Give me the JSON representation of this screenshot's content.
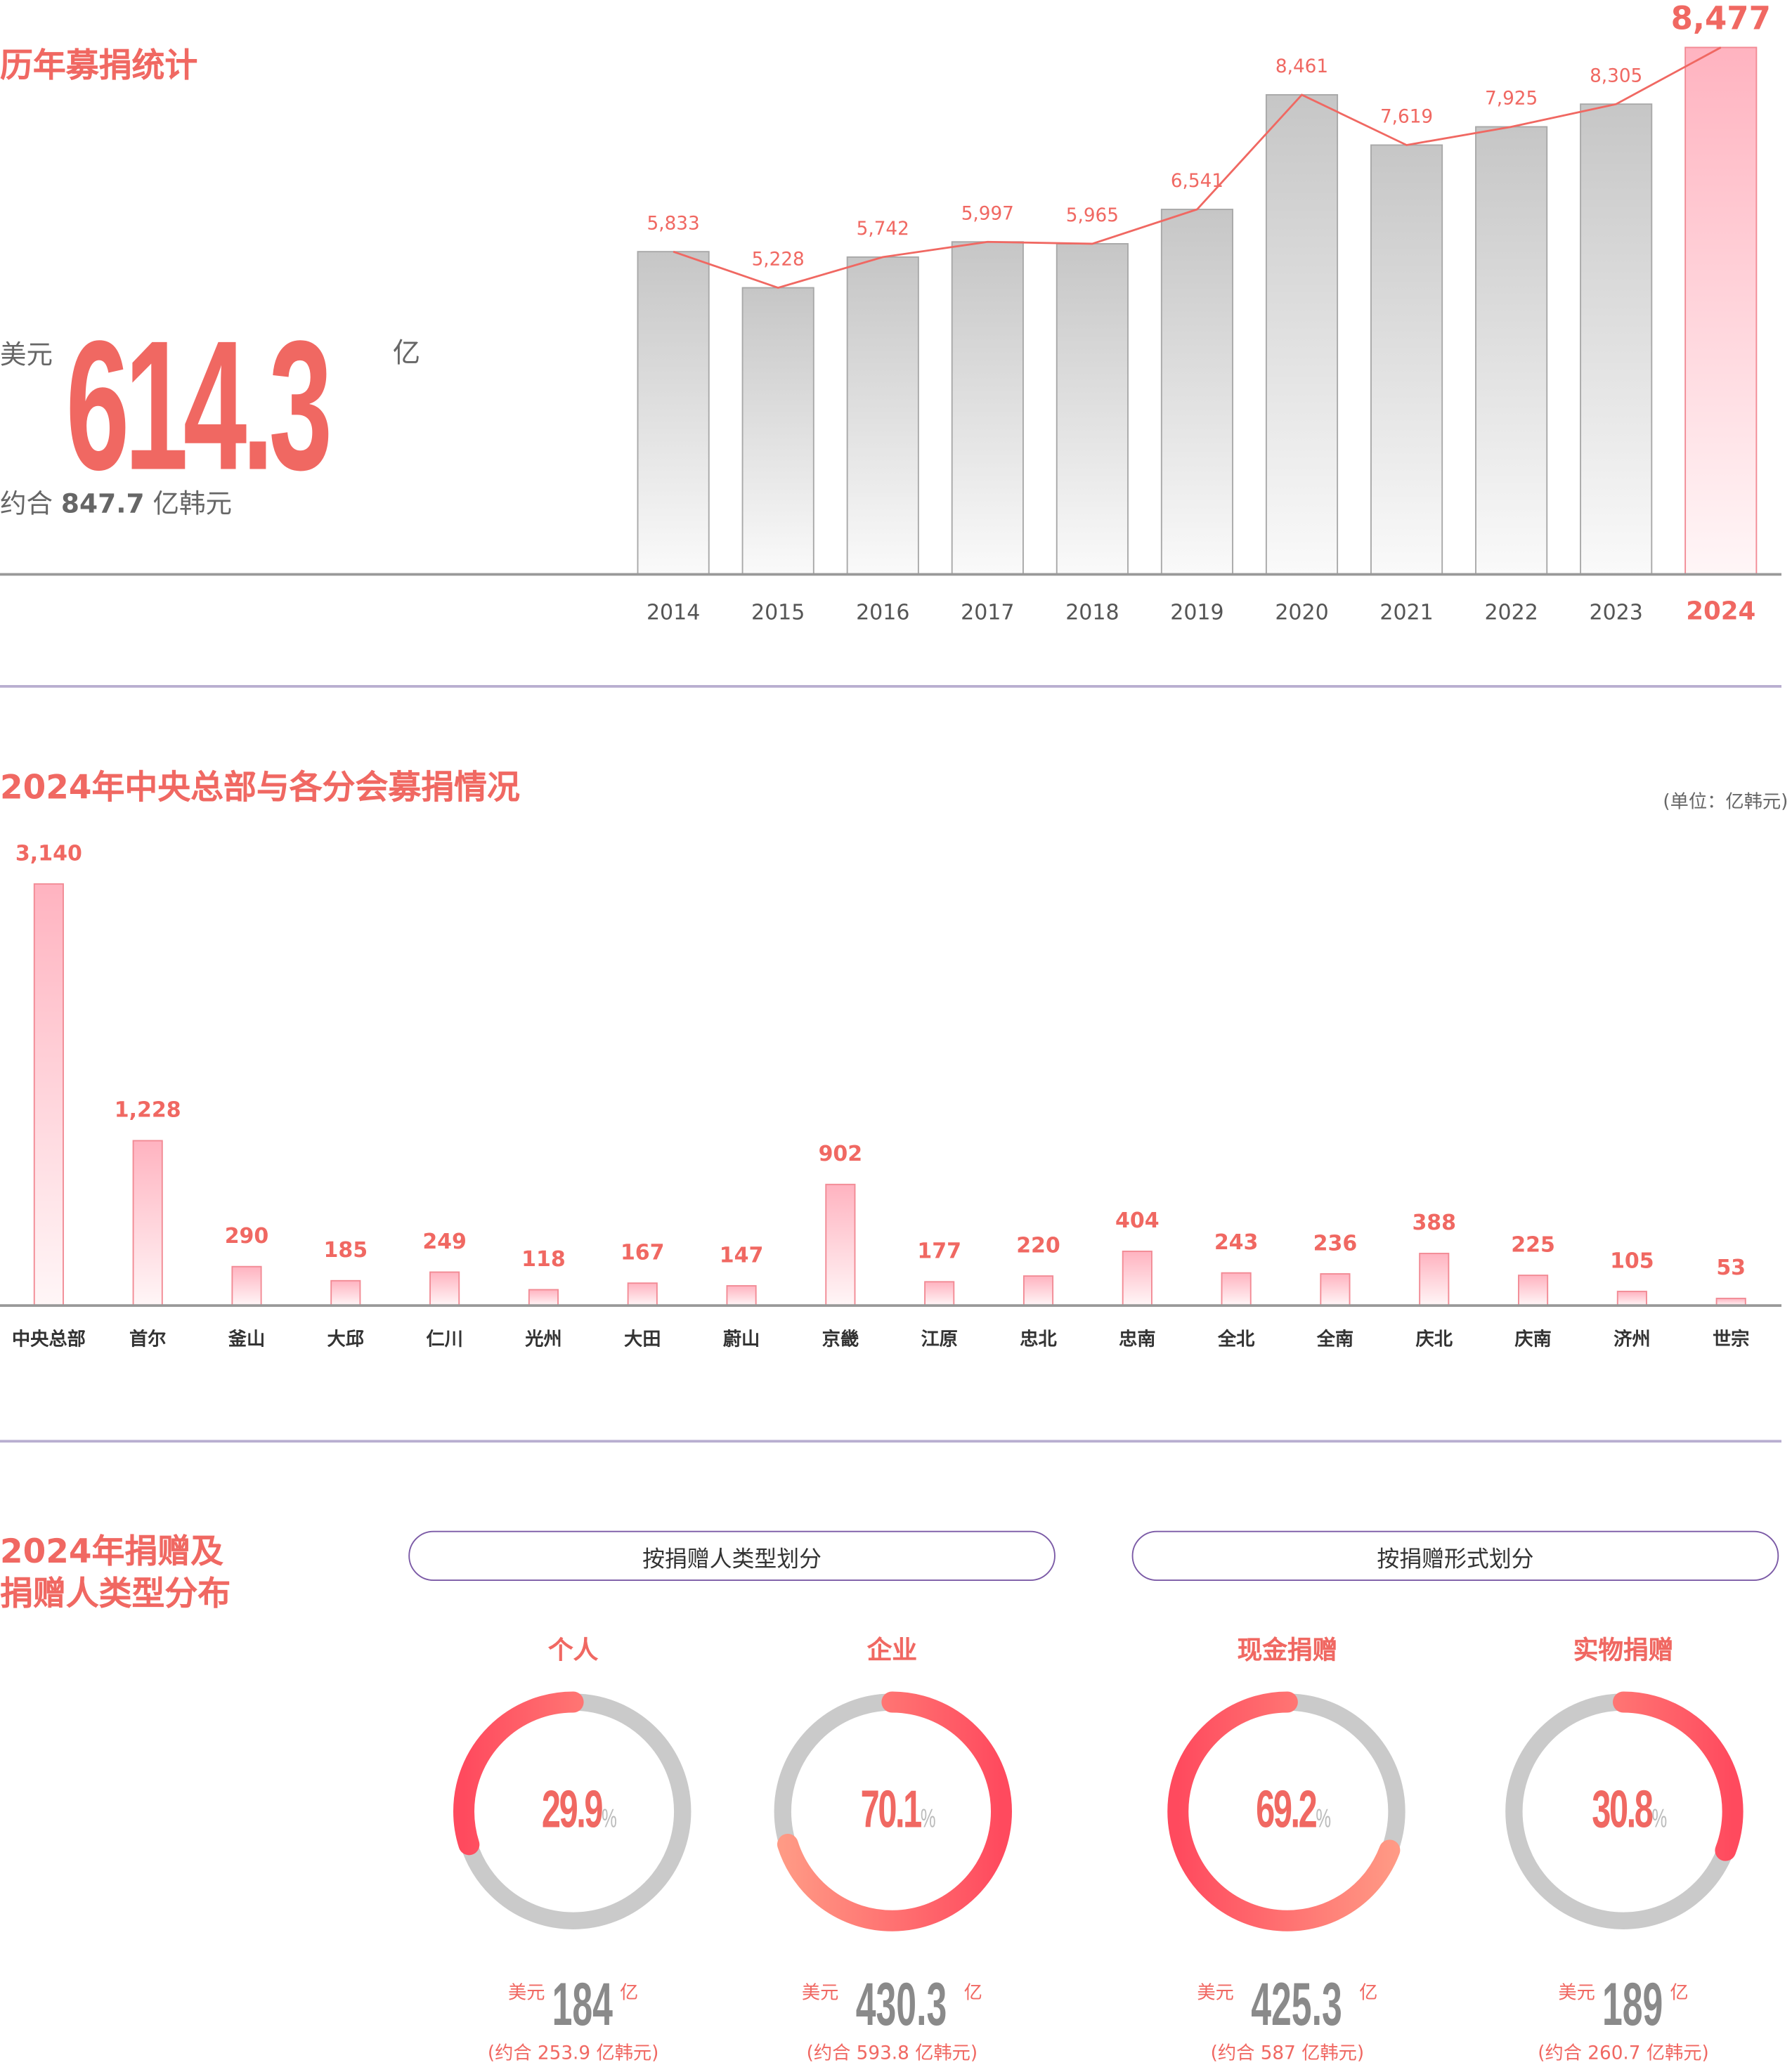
{
  "section1": {
    "title": "历年募捐统计",
    "currency": "美元",
    "total": "614.3",
    "unit": "亿",
    "krw_prefix": "约合",
    "krw_value": "847.7",
    "krw_unit": "亿韩元"
  },
  "section2": {
    "title": "2024年中央总部与各分会募捐情况",
    "unit_note": "(单位：亿韩元)"
  },
  "section3": {
    "title_line1": "2024年捐赠及",
    "title_line2": "捐赠人类型分布",
    "pill1": "按捐赠人类型划分",
    "pill2": "按捐赠形式划分",
    "donuts": [
      {
        "label": "个人",
        "percent": "29.9",
        "pct_sign": "%",
        "value": 29.9,
        "currency": "美元",
        "amount": "184",
        "unit": "亿",
        "krw": "(约合 253.9 亿韩元)"
      },
      {
        "label": "企业",
        "percent": "70.1",
        "pct_sign": "%",
        "value": 70.1,
        "currency": "美元",
        "amount": "430.3",
        "unit": "亿",
        "krw": "(约合 593.8 亿韩元)"
      },
      {
        "label": "现金捐赠",
        "percent": "69.2",
        "pct_sign": "%",
        "value": 69.2,
        "currency": "美元",
        "amount": "425.3",
        "unit": "亿",
        "krw": "(约合 587 亿韩元)"
      },
      {
        "label": "实物捐赠",
        "percent": "30.8",
        "pct_sign": "%",
        "value": 30.8,
        "currency": "美元",
        "amount": "189",
        "unit": "亿",
        "krw": "(约合 260.7 亿韩元)"
      }
    ]
  },
  "colors": {
    "accent": "#f06862",
    "gray_bar": "#c8c8c8",
    "divider": "#b8aed0"
  },
  "chart_data": [
    {
      "type": "bar",
      "title": "历年募捐统计",
      "categories": [
        "2014",
        "2015",
        "2016",
        "2017",
        "2018",
        "2019",
        "2020",
        "2021",
        "2022",
        "2023",
        "2024"
      ],
      "values": [
        5833,
        5228,
        5742,
        5997,
        5965,
        6541,
        8461,
        7619,
        7925,
        8305,
        8477
      ],
      "labels": [
        "5,833",
        "5,228",
        "5,742",
        "5,997",
        "5,965",
        "6,541",
        "8,461",
        "7,619",
        "7,925",
        "8,305",
        "8,477"
      ],
      "highlight": "2024",
      "line_overlay": true
    },
    {
      "type": "bar",
      "title": "2024年中央总部与各分会募捐情况",
      "ylabel": "亿韩元",
      "categories": [
        "中央总部",
        "首尔",
        "釜山",
        "大邱",
        "仁川",
        "光州",
        "大田",
        "蔚山",
        "京畿",
        "江原",
        "忠北",
        "忠南",
        "全北",
        "全南",
        "庆北",
        "庆南",
        "济州",
        "世宗"
      ],
      "values": [
        3140,
        1228,
        290,
        185,
        249,
        118,
        167,
        147,
        902,
        177,
        220,
        404,
        243,
        236,
        388,
        225,
        105,
        53
      ],
      "labels": [
        "3,140",
        "1,228",
        "290",
        "185",
        "249",
        "118",
        "167",
        "147",
        "902",
        "177",
        "220",
        "404",
        "243",
        "236",
        "388",
        "225",
        "105",
        "53"
      ]
    },
    {
      "type": "pie",
      "title": "按捐赠人类型划分",
      "categories": [
        "个人",
        "企业"
      ],
      "values": [
        29.9,
        70.1
      ]
    },
    {
      "type": "pie",
      "title": "按捐赠形式划分",
      "categories": [
        "现金捐赠",
        "实物捐赠"
      ],
      "values": [
        69.2,
        30.8
      ]
    }
  ]
}
